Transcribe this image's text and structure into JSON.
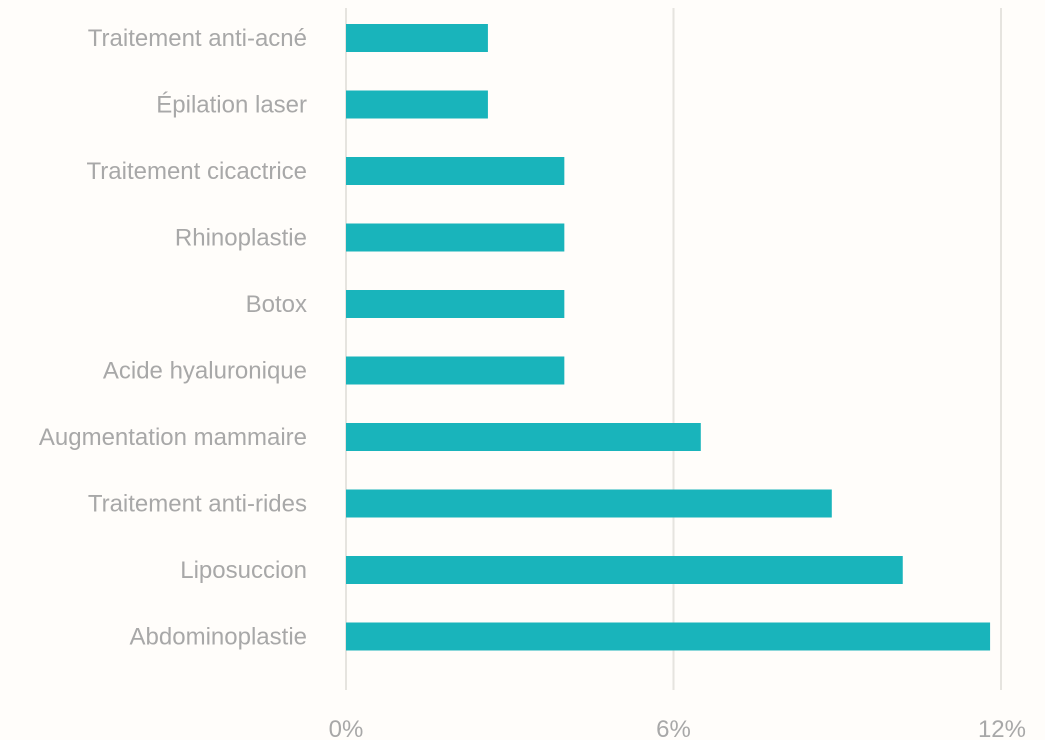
{
  "chart_data": {
    "type": "bar",
    "orientation": "horizontal",
    "categories": [
      "Traitement anti-acné",
      "Épilation laser",
      "Traitement cicactrice",
      "Rhinoplastie",
      "Botox",
      "Acide hyaluronique",
      "Augmentation mammaire",
      "Traitement anti-rides",
      "Liposuccion",
      "Abdominoplastie"
    ],
    "values": [
      2.6,
      2.6,
      4.0,
      4.0,
      4.0,
      4.0,
      6.5,
      8.9,
      10.2,
      11.8
    ],
    "unit": "%",
    "xlim": [
      0,
      12
    ],
    "x_ticks": [
      0,
      6,
      12
    ],
    "x_tick_labels": [
      "0%",
      "6%",
      "12%"
    ],
    "grid": true,
    "bar_color": "#19b4bb",
    "title": "",
    "xlabel": "",
    "ylabel": ""
  }
}
